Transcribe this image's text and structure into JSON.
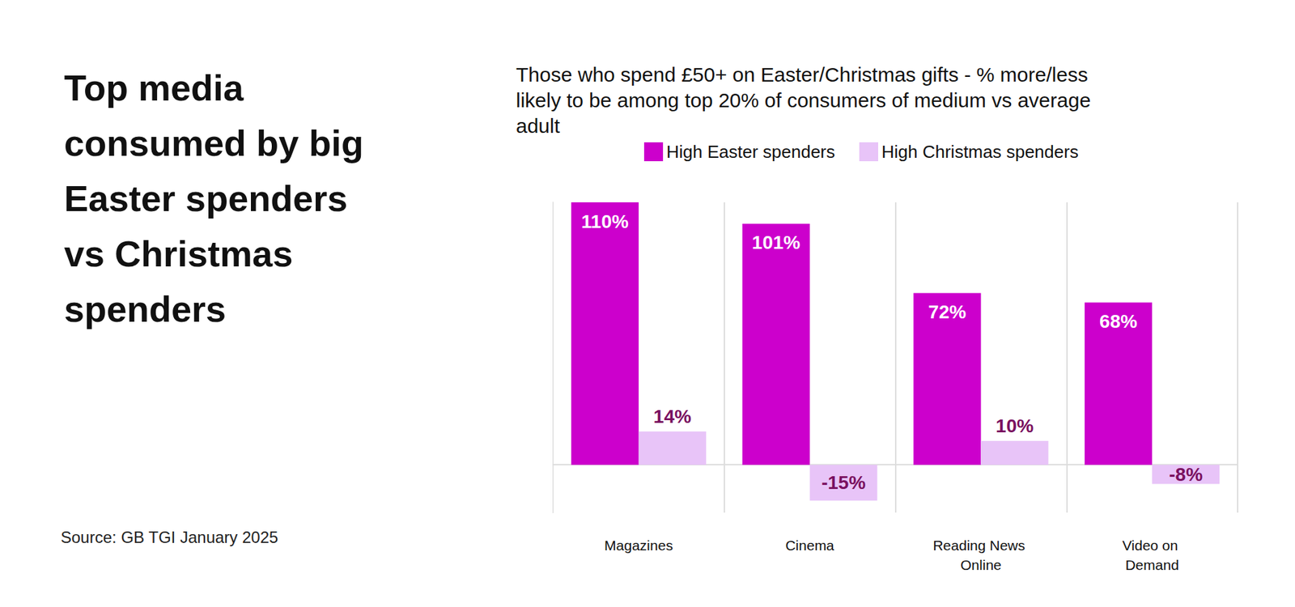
{
  "chart_data": {
    "type": "bar",
    "title": "Top media consumed by big Easter spenders vs Christmas spenders",
    "subtitle": "Those who spend £50+ on Easter/Christmas gifts - % more/less likely to be among top 20% of consumers of medium vs average adult",
    "source": "Source: GB TGI January 2025",
    "categories": [
      "Magazines",
      "Cinema",
      "Reading News Online",
      "Video on Demand"
    ],
    "series": [
      {
        "name": "High Easter spenders",
        "color": "#cc00cc",
        "values": [
          110,
          101,
          72,
          68
        ],
        "value_labels": [
          "110%",
          "101%",
          "72%",
          "68%"
        ]
      },
      {
        "name": "High Christmas spenders",
        "color": "#e8c4f8",
        "values": [
          14,
          -15,
          10,
          -8
        ],
        "value_labels": [
          "14%",
          "-15%",
          "10%",
          "-8%"
        ]
      }
    ],
    "ylim": [
      -20,
      110
    ],
    "grid": false,
    "legend": "top",
    "data_labels": true,
    "tick_labels": "x"
  }
}
